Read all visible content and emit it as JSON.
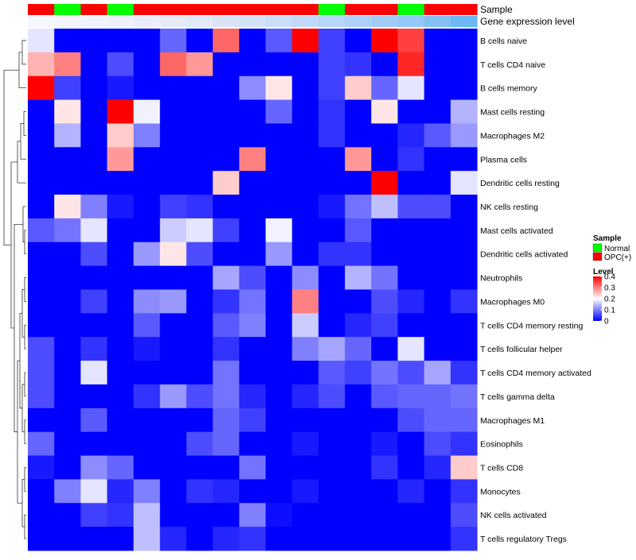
{
  "chart_data": {
    "type": "heatmap",
    "colors": {
      "normal": "#00ff00",
      "opc": "#ff0000",
      "low": "#0000ff",
      "mid": "#ffffff",
      "high": "#ff0000"
    },
    "annotations": {
      "sample_label": "Sample",
      "gene_label": "Gene expression level",
      "samples": [
        "OPC(+)",
        "Normal",
        "OPC(+)",
        "Normal",
        "OPC(+)",
        "OPC(+)",
        "OPC(+)",
        "OPC(+)",
        "OPC(+)",
        "OPC(+)",
        "OPC(+)",
        "Normal",
        "OPC(+)",
        "OPC(+)",
        "Normal",
        "OPC(+)",
        "OPC(+)"
      ],
      "gene_expression": [
        "#f6f6ff",
        "#f4f4fd",
        "#f1f3fc",
        "#eef1fb",
        "#ebeefa",
        "#e6ebf9",
        "#e1e8f8",
        "#dbe4f7",
        "#d4e2f8",
        "#cbdef9",
        "#c2daf9",
        "#b8d6f9",
        "#add1f9",
        "#a2ccf8",
        "#95c7f7",
        "#83c0f6",
        "#6cb8f5"
      ]
    },
    "rows": [
      "B cells naive",
      "T cells CD4 naive",
      "B cells memory",
      "Mast cells resting",
      "Macrophages M2",
      "Plasma cells",
      "Dendritic cells resting",
      "NK cells resting",
      "Mast cells activated",
      "Dendritic cells activated",
      "Neutrophils",
      "Macrophages M0",
      "T cells CD4 memory resting",
      "T cells follicular helper",
      "T cells CD4 memory activated",
      "T cells gamma delta",
      "Macrophages M1",
      "Eosinophils",
      "T cells CD8",
      "Monocytes",
      "NK cells activated",
      "T cells regulatory  Tregs"
    ],
    "values": [
      [
        0.18,
        0,
        0,
        0,
        0,
        0.08,
        0,
        0.32,
        0,
        0.07,
        0.4,
        0.05,
        0,
        0.4,
        0.35,
        0,
        0
      ],
      [
        0.26,
        0.3,
        0,
        0.06,
        0,
        0.32,
        0.28,
        0,
        0,
        0,
        0,
        0.05,
        0.04,
        0,
        0.37,
        0,
        0
      ],
      [
        0.4,
        0.05,
        0,
        0.02,
        0,
        0,
        0,
        0,
        0.11,
        0.22,
        0,
        0.05,
        0.24,
        0.08,
        0.18,
        0,
        0
      ],
      [
        0,
        0.22,
        0,
        0.4,
        0.19,
        0,
        0,
        0,
        0,
        0.08,
        0,
        0.04,
        0,
        0.22,
        0,
        0,
        0.14
      ],
      [
        0,
        0.14,
        0,
        0.24,
        0.1,
        0,
        0,
        0,
        0,
        0,
        0,
        0.04,
        0,
        0,
        0.03,
        0.07,
        0.12
      ],
      [
        0,
        0,
        0,
        0.28,
        0,
        0,
        0,
        0,
        0.3,
        0,
        0,
        0,
        0.28,
        0,
        0.04,
        0,
        0
      ],
      [
        0,
        0,
        0,
        0,
        0,
        0,
        0,
        0.24,
        0,
        0,
        0,
        0,
        0,
        0.4,
        0,
        0,
        0.18
      ],
      [
        0,
        0.22,
        0.1,
        0.02,
        0,
        0.05,
        0.04,
        0,
        0,
        0,
        0,
        0.02,
        0.09,
        0.15,
        0.06,
        0.06,
        0
      ],
      [
        0.07,
        0.09,
        0.18,
        0,
        0,
        0.16,
        0.18,
        0.05,
        0,
        0.19,
        0,
        0,
        0.07,
        0,
        0,
        0,
        0
      ],
      [
        0,
        0,
        0.06,
        0,
        0.12,
        0.22,
        0.06,
        0,
        0,
        0.12,
        0,
        0.04,
        0.04,
        0,
        0,
        0,
        0
      ],
      [
        0,
        0,
        0,
        0,
        0,
        0,
        0,
        0.13,
        0.06,
        0,
        0.11,
        0,
        0.14,
        0.09,
        0,
        0,
        0
      ],
      [
        0,
        0,
        0.05,
        0,
        0.11,
        0.12,
        0,
        0.04,
        0.09,
        0,
        0.3,
        0,
        0,
        0.06,
        0.03,
        0,
        0.04
      ],
      [
        0,
        0,
        0,
        0,
        0.07,
        0,
        0,
        0.07,
        0.1,
        0,
        0.16,
        0,
        0.03,
        0.05,
        0,
        0,
        0
      ],
      [
        0.06,
        0,
        0.04,
        0,
        0.02,
        0,
        0,
        0.04,
        0,
        0,
        0.1,
        0.13,
        0.08,
        0,
        0.18,
        0,
        0
      ],
      [
        0.06,
        0,
        0.18,
        0,
        0,
        0,
        0,
        0.09,
        0,
        0,
        0,
        0.07,
        0.05,
        0.09,
        0.06,
        0.13,
        0.04
      ],
      [
        0.06,
        0,
        0,
        0,
        0.04,
        0.12,
        0.06,
        0.09,
        0.03,
        0,
        0.03,
        0.06,
        0,
        0.07,
        0.08,
        0.08,
        0.09
      ],
      [
        0,
        0,
        0.07,
        0,
        0,
        0,
        0,
        0.08,
        0.05,
        0,
        0,
        0,
        0,
        0,
        0.06,
        0.08,
        0.08
      ],
      [
        0.08,
        0,
        0,
        0,
        0,
        0,
        0.06,
        0.08,
        0,
        0,
        0.02,
        0,
        0,
        0.02,
        0,
        0.06,
        0.04
      ],
      [
        0.02,
        0,
        0.11,
        0.08,
        0,
        0,
        0,
        0,
        0.09,
        0,
        0,
        0,
        0,
        0.04,
        0,
        0.03,
        0.24
      ],
      [
        0,
        0.1,
        0.18,
        0.03,
        0.1,
        0,
        0.04,
        0.03,
        0,
        0,
        0.02,
        0,
        0,
        0,
        0.03,
        0,
        0.04
      ],
      [
        0,
        0,
        0.05,
        0.04,
        0.15,
        0,
        0,
        0,
        0.1,
        0.01,
        0,
        0,
        0,
        0,
        0,
        0,
        0.06
      ],
      [
        0,
        0,
        0,
        0,
        0.15,
        0.03,
        0,
        0.03,
        0.04,
        0,
        0,
        0,
        0,
        0,
        0,
        0,
        0.04
      ]
    ],
    "legend": {
      "sample_title": "Sample",
      "sample_items": [
        "Normal",
        "OPC(+)"
      ],
      "level_title": "Level",
      "level_ticks": [
        "0.4",
        "0.3",
        "0.2",
        "0.1",
        "0"
      ],
      "level_tick_values": [
        0.4,
        0.3,
        0.2,
        0.1,
        0
      ]
    },
    "value_range": [
      0,
      0.4
    ]
  }
}
